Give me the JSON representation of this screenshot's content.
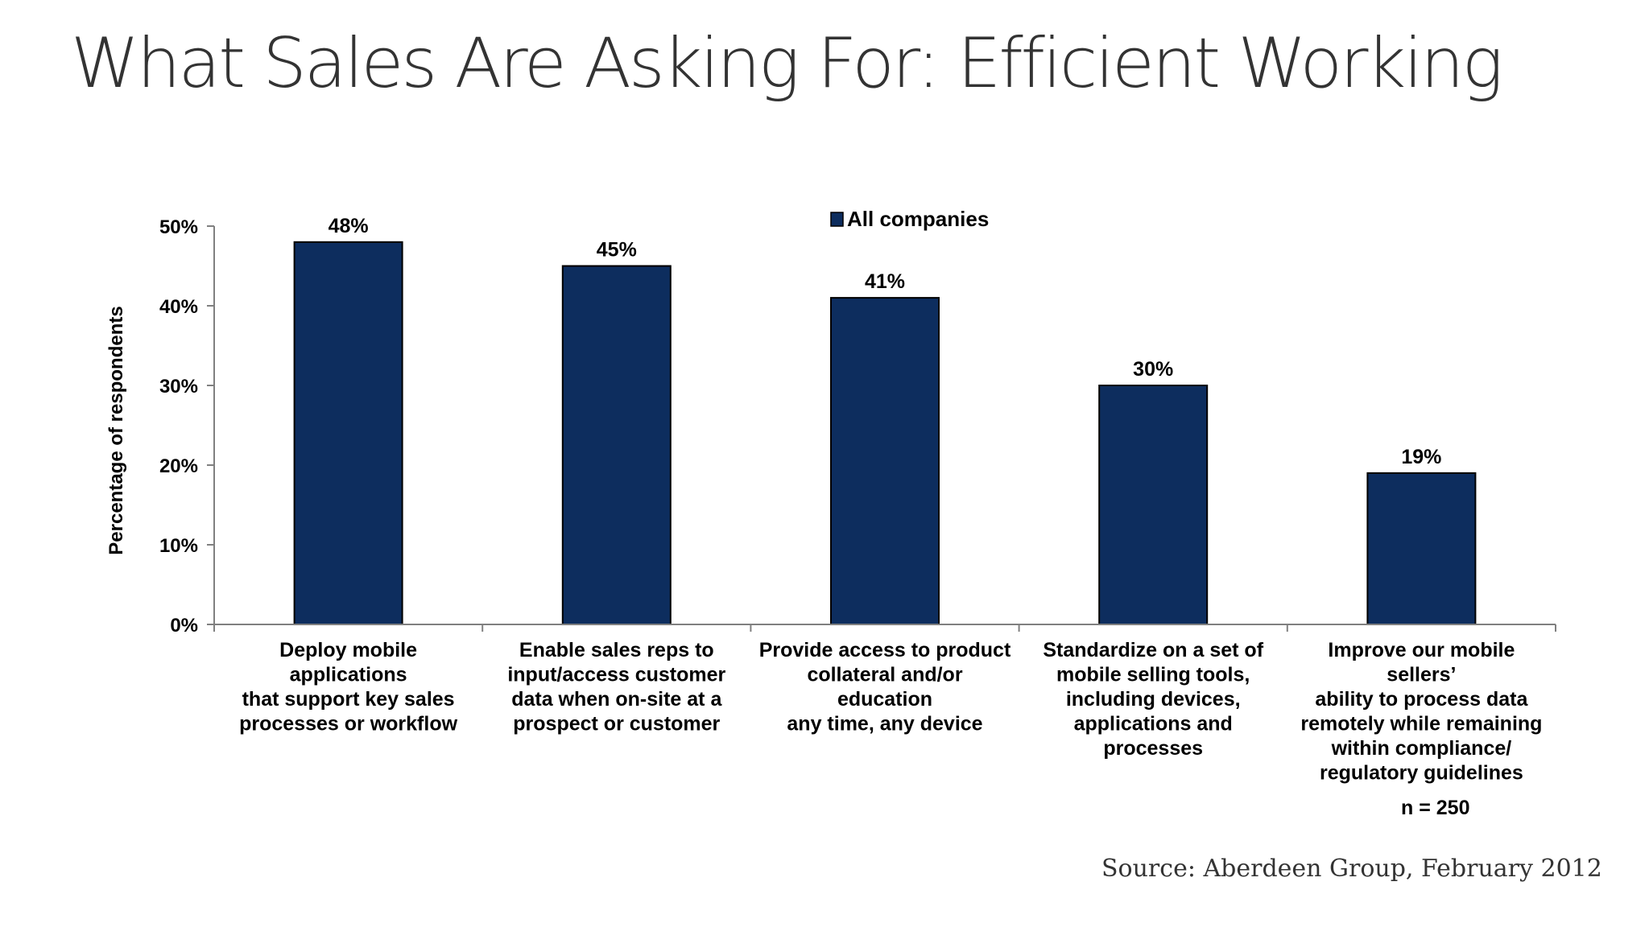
{
  "slide": {
    "title": "What Sales Are Asking For: Efficient Working",
    "source": "Source: Aberdeen Group, February 2012",
    "sample_size": "n = 250"
  },
  "colors": {
    "bar_fill": "#0d2d5e",
    "axis": "#808080",
    "text": "#000000"
  },
  "chart_data": {
    "type": "bar",
    "title": "",
    "xlabel": "",
    "ylabel": "Percentage of respondents",
    "ylim": [
      0,
      50
    ],
    "yticks": [
      0,
      10,
      20,
      30,
      40,
      50
    ],
    "ytick_labels": [
      "0%",
      "10%",
      "20%",
      "30%",
      "40%",
      "50%"
    ],
    "grid": false,
    "legend_position": "top-center",
    "categories": [
      [
        "Deploy mobile",
        "applications",
        "that support key sales",
        "processes or workflow"
      ],
      [
        "Enable sales reps to",
        "input/access customer",
        "data when on-site at a",
        "prospect or customer"
      ],
      [
        "Provide access to product",
        "collateral and/or",
        "education",
        "any time, any device"
      ],
      [
        "Standardize on a set of",
        "mobile selling tools,",
        "including devices,",
        "applications and",
        "processes"
      ],
      [
        "Improve our mobile",
        "sellers’",
        "ability to process data",
        "remotely while remaining",
        "within compliance/",
        "regulatory guidelines"
      ]
    ],
    "series": [
      {
        "name": "All companies",
        "values": [
          48,
          45,
          41,
          30,
          19
        ],
        "value_labels": [
          "48%",
          "45%",
          "41%",
          "30%",
          "19%"
        ]
      }
    ]
  }
}
